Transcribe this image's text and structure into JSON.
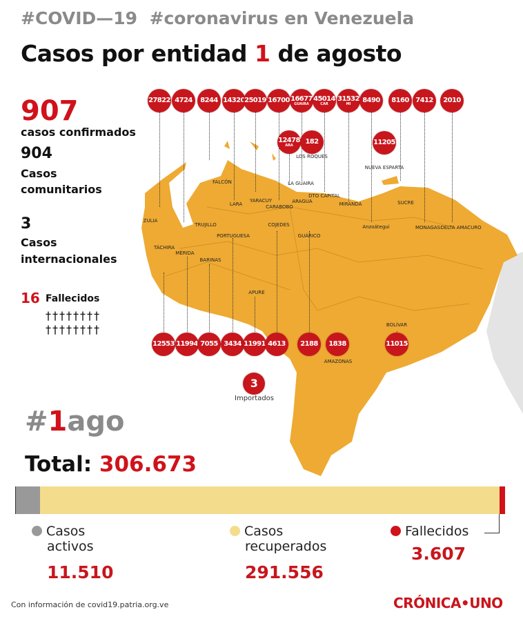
{
  "header": {
    "hashtag1": "#COVID—19",
    "hashtag2": "#coronavirus en Venezuela",
    "title_prefix": "Casos por entidad",
    "title_day": "1",
    "title_suffix": "de agosto"
  },
  "summary": {
    "confirmed": "907",
    "confirmed_label": "casos confirmados",
    "community": "904",
    "community_label1": "Casos",
    "community_label2": "comunitarios",
    "international": "3",
    "international_label1": "Casos",
    "international_label2": "internacionales",
    "deaths": "16",
    "deaths_label": "Fallecidos",
    "crosses1": "††††††††",
    "crosses2": "††††††††"
  },
  "colors": {
    "map": "#eeaa33",
    "pin": "#c8161d",
    "active": "#999999",
    "recovered": "#f3dc8c",
    "deaths": "#d0121b"
  },
  "top_pins": [
    {
      "value": "27822",
      "state": "ZULIA"
    },
    {
      "value": "4724",
      "state": "TRUJILLO"
    },
    {
      "value": "8244",
      "state": "FALCÓN"
    },
    {
      "value": "14320",
      "state": "LARA"
    },
    {
      "value": "25019",
      "state": "YARACUY"
    },
    {
      "value": "16700",
      "state": "CARABOBO"
    },
    {
      "value": "16677",
      "sub": "GUAIRA",
      "state": "LA GUAIRA"
    },
    {
      "value": "45014",
      "sub": "CAR",
      "state": "DTO CAPITAL"
    },
    {
      "value": "31532",
      "sub": "MI",
      "state": "MIRANDA"
    },
    {
      "value": "8490",
      "state": "Anzoátegui"
    },
    {
      "value": "8160",
      "state": "SUCRE"
    },
    {
      "value": "7412",
      "state": "MONAGAS"
    },
    {
      "value": "2010",
      "state": "DELTA AMACURO"
    }
  ],
  "mid_pins": [
    {
      "value": "12478",
      "sub": "ARA",
      "state": "ARAGUA"
    },
    {
      "value": "182",
      "state": "LOS ROQUES"
    },
    {
      "value": "11205",
      "state": "NUEVA ESPARTA"
    }
  ],
  "bottom_pins": [
    {
      "value": "12553",
      "state": "TÁCHIRA"
    },
    {
      "value": "11994",
      "state": "MÉRIDA"
    },
    {
      "value": "7055",
      "state": "BARINAS"
    },
    {
      "value": "3434",
      "state": "PORTUGUESA"
    },
    {
      "value": "11991",
      "state": "APURE"
    },
    {
      "value": "4613",
      "state": "COJEDES"
    },
    {
      "value": "2188",
      "state": "GUÁRICO"
    },
    {
      "value": "1838",
      "state": "AMAZONAS"
    },
    {
      "value": "11015",
      "state": "BOLÍVAR"
    }
  ],
  "imported": {
    "value": "3",
    "label": "Importados"
  },
  "totals": {
    "hashtag_prefix": "#",
    "hashtag_day": "1",
    "hashtag_suffix": "ago",
    "total_label": "Total:",
    "total": "306.673",
    "active_label1": "Casos",
    "active_label2": "activos",
    "active": "11.510",
    "recovered_label1": "Casos",
    "recovered_label2": "recuperados",
    "recovered": "291.556",
    "deaths_label": "Fallecidos",
    "deaths": "3.607"
  },
  "footer": {
    "source": "Con información de covid19.patria.org.ve",
    "brand": "CRÓNICA•UNO"
  }
}
